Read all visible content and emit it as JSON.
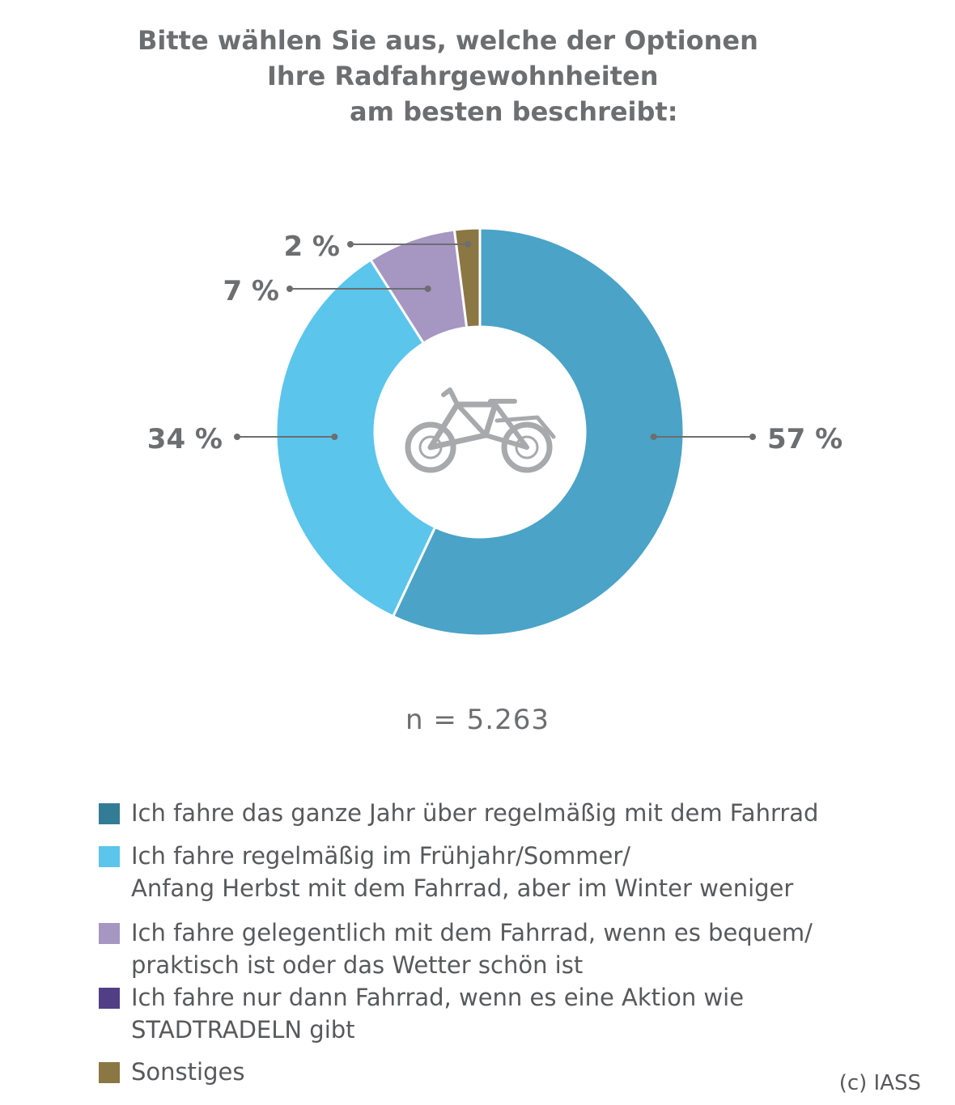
{
  "title_lines": [
    "Bitte wählen Sie aus, welche der Optionen",
    "Ihre Radfahrgewohnheiten",
    "am besten beschreibt:"
  ],
  "center_icon": "bicycle-icon",
  "sample_size": "n = 5.263",
  "credit": "(c) IASS",
  "chart_data": {
    "type": "pie",
    "variant": "donut",
    "unit": "%",
    "slices": [
      {
        "label": "Ich fahre das ganze Jahr über regelmäßig mit dem Fahrrad",
        "value": 57,
        "display": "57 %",
        "color": "#4ba3c7"
      },
      {
        "label": "Ich fahre regelmäßig im Frühjahr/Sommer/ Anfang Herbst mit dem Fahrrad, aber im Winter weniger",
        "value": 34,
        "display": "34 %",
        "color": "#5bc5ec"
      },
      {
        "label": "Ich fahre gelegentlich mit dem Fahrrad, wenn es bequem/ praktisch ist oder das Wetter schön ist",
        "value": 7,
        "display": "7 %",
        "color": "#a696c2"
      },
      {
        "label": "Ich fahre nur dann Fahrrad, wenn es eine Aktion wie STADTRADELN gibt",
        "value": 0,
        "display": "",
        "color": "#523e85"
      },
      {
        "label": "Sonstiges",
        "value": 2,
        "display": "2 %",
        "color": "#8b7743"
      }
    ]
  },
  "legend": [
    {
      "text": "Ich fahre das ganze Jahr über regelmäßig mit dem Fahrrad",
      "color": "#337c95"
    },
    {
      "text": "Ich fahre regelmäßig im Frühjahr/Sommer/\nAnfang Herbst mit dem Fahrrad, aber im Winter weniger",
      "color": "#5bc5ec"
    },
    {
      "text": "Ich fahre gelegentlich mit dem Fahrrad, wenn es bequem/\npraktisch ist oder das Wetter schön ist",
      "color": "#a696c2"
    },
    {
      "text": "Ich fahre nur dann Fahrrad, wenn es eine Aktion wie\nSTADTRADELN gibt",
      "color": "#523e85"
    },
    {
      "text": "Sonstiges",
      "color": "#8b7743"
    }
  ]
}
